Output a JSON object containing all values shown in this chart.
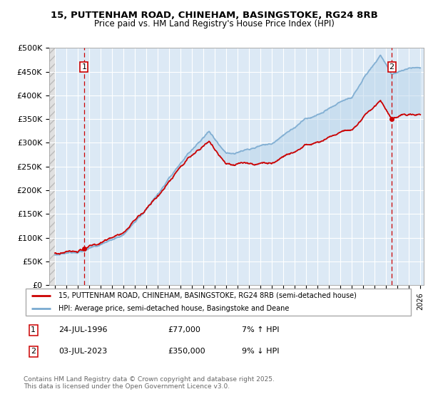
{
  "title_line1": "15, PUTTENHAM ROAD, CHINEHAM, BASINGSTOKE, RG24 8RB",
  "title_line2": "Price paid vs. HM Land Registry's House Price Index (HPI)",
  "ylim": [
    0,
    500000
  ],
  "yticks": [
    0,
    50000,
    100000,
    150000,
    200000,
    250000,
    300000,
    350000,
    400000,
    450000,
    500000
  ],
  "ytick_labels": [
    "£0",
    "£50K",
    "£100K",
    "£150K",
    "£200K",
    "£250K",
    "£300K",
    "£350K",
    "£400K",
    "£450K",
    "£500K"
  ],
  "xlim_start": 1993.5,
  "xlim_end": 2026.3,
  "transaction1_date": 1996.56,
  "transaction1_price": 77000,
  "transaction2_date": 2023.5,
  "transaction2_price": 350000,
  "legend_line1": "15, PUTTENHAM ROAD, CHINEHAM, BASINGSTOKE, RG24 8RB (semi-detached house)",
  "legend_line2": "HPI: Average price, semi-detached house, Basingstoke and Deane",
  "footer": "Contains HM Land Registry data © Crown copyright and database right 2025.\nThis data is licensed under the Open Government Licence v3.0.",
  "line_color_paid": "#cc0000",
  "line_color_hpi": "#7aaad0",
  "plot_bg_color": "#dce9f5",
  "hatch_bg_color": "#e8e8e8",
  "grid_color": "#ffffff",
  "vline_color": "#cc0000",
  "marker_color": "#cc0000",
  "fill_color": "#b8d4ea",
  "background_color": "#ffffff"
}
